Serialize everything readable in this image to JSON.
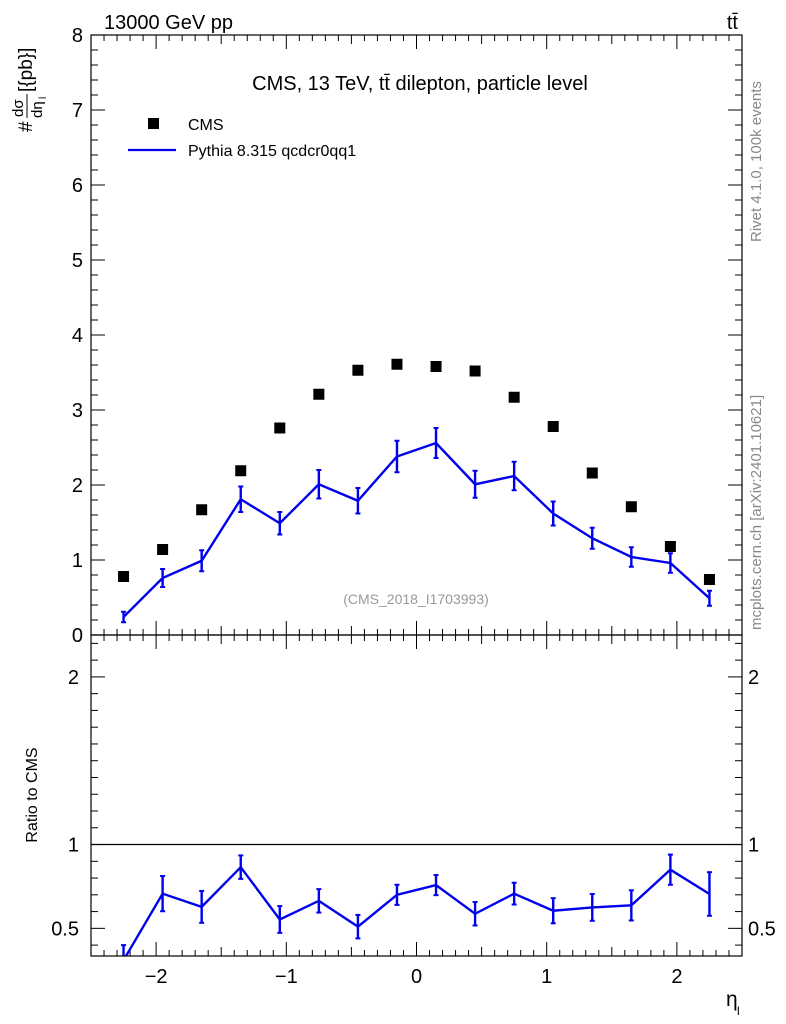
{
  "header": {
    "left": "13000 GeV pp",
    "right": "tt̄"
  },
  "side_labels": {
    "rivet": "Rivet 4.1.0,  100k events",
    "mcplots": "mcplots.cern.ch [arXiv:2401.10621]"
  },
  "watermark": "(CMS_2018_I1703993)",
  "colors": {
    "data": "#000000",
    "mc": "#0000ee",
    "watermark": "#999999"
  },
  "chart_data": [
    {
      "type": "scatter",
      "panel": "main",
      "title": "CMS, 13 TeV, tt̄ dilepton, particle level",
      "ylabel": "dσ/dη_l [pb]",
      "xlabel": "η_l",
      "xlim": [
        -2.5,
        2.5
      ],
      "ylim": [
        0,
        8
      ],
      "yticks": [
        0,
        1,
        2,
        3,
        4,
        5,
        6,
        7,
        8
      ],
      "ytick_labels": [
        "0",
        "1",
        "2",
        "3",
        "4",
        "5",
        "6",
        "7",
        "8"
      ],
      "legend": {
        "position": "top-left",
        "entries": [
          "CMS",
          "Pythia 8.315 qcdcr0qq1"
        ]
      },
      "series": [
        {
          "name": "CMS",
          "style": "markers",
          "x": [
            -2.25,
            -1.95,
            -1.65,
            -1.35,
            -1.05,
            -0.75,
            -0.45,
            -0.15,
            0.15,
            0.45,
            0.75,
            1.05,
            1.35,
            1.65,
            1.95,
            2.25
          ],
          "y": [
            0.78,
            1.14,
            1.67,
            2.19,
            2.76,
            3.21,
            3.53,
            3.61,
            3.58,
            3.52,
            3.17,
            2.78,
            2.16,
            1.71,
            1.18,
            0.74
          ]
        },
        {
          "name": "Pythia 8.315 qcdcr0qq1",
          "style": "line",
          "x": [
            -2.25,
            -1.95,
            -1.65,
            -1.35,
            -1.05,
            -0.75,
            -0.45,
            -0.15,
            0.15,
            0.45,
            0.75,
            1.05,
            1.35,
            1.65,
            1.95,
            2.25
          ],
          "y": [
            0.24,
            0.76,
            0.99,
            1.81,
            1.49,
            2.01,
            1.79,
            2.38,
            2.56,
            2.01,
            2.12,
            1.62,
            1.29,
            1.04,
            0.96,
            0.49
          ],
          "yerr": [
            0.07,
            0.12,
            0.14,
            0.17,
            0.15,
            0.19,
            0.17,
            0.21,
            0.2,
            0.18,
            0.19,
            0.16,
            0.14,
            0.13,
            0.13,
            0.1
          ]
        }
      ]
    },
    {
      "type": "line",
      "panel": "ratio",
      "ylabel": "Ratio to CMS",
      "xlabel": "η_l",
      "xlim": [
        -2.5,
        2.5
      ],
      "ylim": [
        0.335,
        2.25
      ],
      "yticks": [
        0.5,
        1,
        2
      ],
      "ytick_labels": [
        "0.5",
        "1",
        "2"
      ],
      "xticks": [
        -2,
        -1,
        0,
        1,
        2
      ],
      "xtick_labels": [
        "−2",
        "−1",
        "0",
        "1",
        "2"
      ],
      "reference_line": 1,
      "series": [
        {
          "name": "Pythia 8.315 qcdcr0qq1",
          "x": [
            -2.25,
            -1.95,
            -1.65,
            -1.35,
            -1.05,
            -0.75,
            -0.45,
            -0.15,
            0.15,
            0.45,
            0.75,
            1.05,
            1.35,
            1.65,
            1.95,
            2.25
          ],
          "y": [
            0.31,
            0.707,
            0.628,
            0.865,
            0.553,
            0.664,
            0.51,
            0.7,
            0.758,
            0.587,
            0.707,
            0.605,
            0.625,
            0.637,
            0.85,
            0.705
          ],
          "yerr": [
            0.09,
            0.105,
            0.095,
            0.07,
            0.08,
            0.07,
            0.07,
            0.06,
            0.06,
            0.07,
            0.065,
            0.075,
            0.08,
            0.09,
            0.09,
            0.13
          ]
        }
      ]
    }
  ]
}
